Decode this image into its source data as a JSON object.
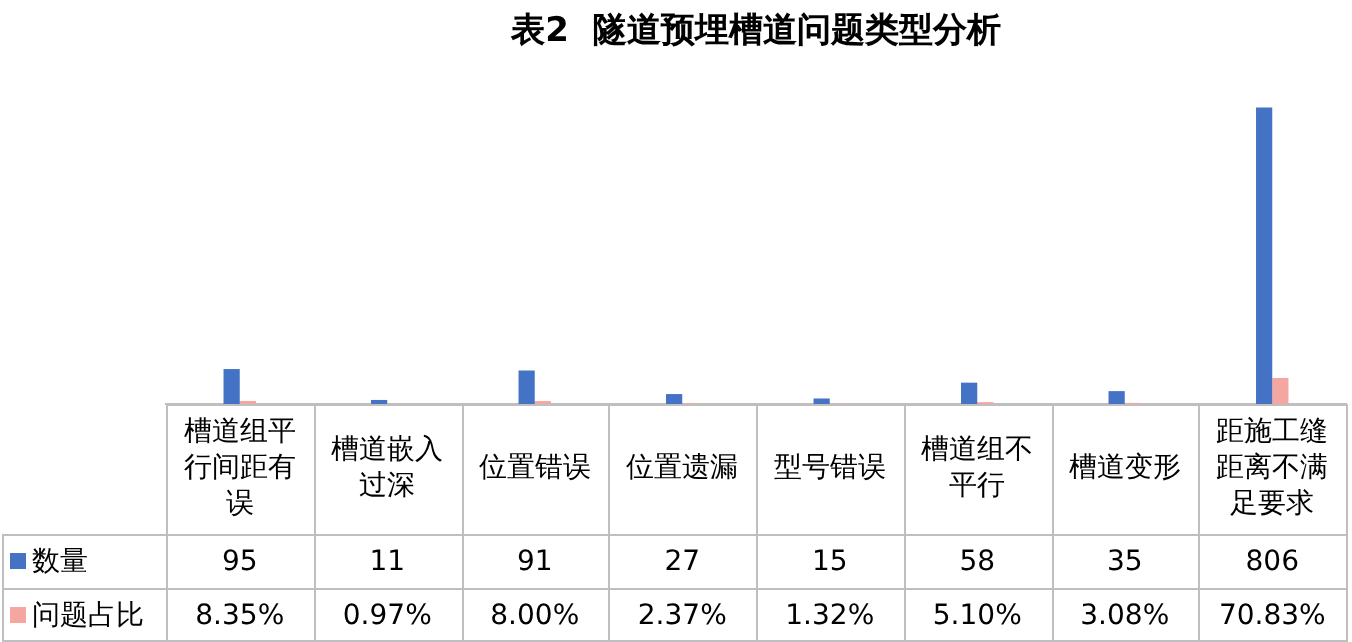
{
  "chart_data": {
    "type": "bar",
    "title": "表2  隧道预埋槽道问题类型分析",
    "categories": [
      "槽道组平行间距有误",
      "槽道嵌入过深",
      "位置错误",
      "位置遗漏",
      "型号错误",
      "槽道组不平行",
      "槽道变形",
      "距施工缝距离不满足要求"
    ],
    "series": [
      {
        "name": "数量",
        "color": "#4472c4",
        "values": [
          95,
          11,
          91,
          27,
          15,
          58,
          35,
          806
        ]
      },
      {
        "name": "问题占比",
        "color": "#f4a6a0",
        "values": [
          8.35,
          0.97,
          8.0,
          2.37,
          1.32,
          5.1,
          3.08,
          70.83
        ],
        "value_labels": [
          "8.35%",
          "0.97%",
          "8.00%",
          "2.37%",
          "1.32%",
          "5.10%",
          "3.08%",
          "70.83%"
        ]
      }
    ],
    "data_labels": true,
    "legend": "bottom left",
    "grid": false,
    "tick_labels": false
  }
}
